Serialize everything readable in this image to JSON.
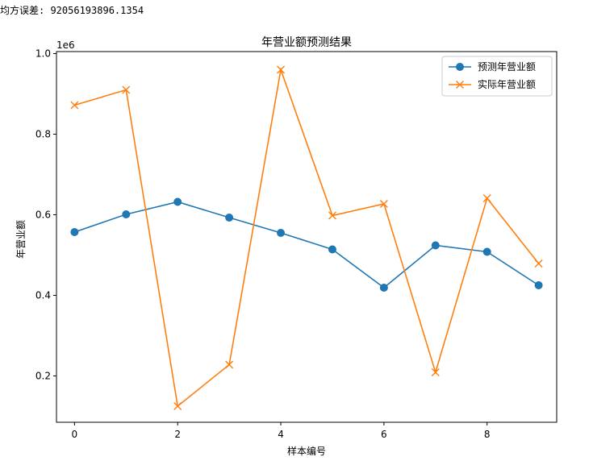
{
  "console": {
    "mse_text": "均方误差: 92056193896.1354"
  },
  "chart_data": {
    "type": "line",
    "title": "年营业额预测结果",
    "xlabel": "样本编号",
    "ylabel": "年营业额",
    "y_offset_label": "1e6",
    "xlim": [
      -0.35,
      9.35
    ],
    "ylim": [
      0.085,
      1.005
    ],
    "x_ticks": [
      0,
      2,
      4,
      6,
      8
    ],
    "y_ticks": [
      0.2,
      0.4,
      0.6,
      0.8,
      1.0
    ],
    "x_tick_labels": [
      "0",
      "2",
      "4",
      "6",
      "8"
    ],
    "y_tick_labels": [
      "0.2",
      "0.4",
      "0.6",
      "0.8",
      "1.0"
    ],
    "grid": false,
    "legend_position": "top-right",
    "x": [
      0,
      1,
      2,
      3,
      4,
      5,
      6,
      7,
      8,
      9
    ],
    "series": [
      {
        "name": "预测年营业额",
        "marker": "circle",
        "color": "#1f77b4",
        "values": [
          0.557,
          0.601,
          0.632,
          0.593,
          0.555,
          0.514,
          0.419,
          0.524,
          0.508,
          0.425
        ]
      },
      {
        "name": "实际年营业额",
        "marker": "x",
        "color": "#ff7f0e",
        "values": [
          0.872,
          0.91,
          0.125,
          0.228,
          0.96,
          0.598,
          0.627,
          0.209,
          0.641,
          0.479
        ]
      }
    ]
  }
}
